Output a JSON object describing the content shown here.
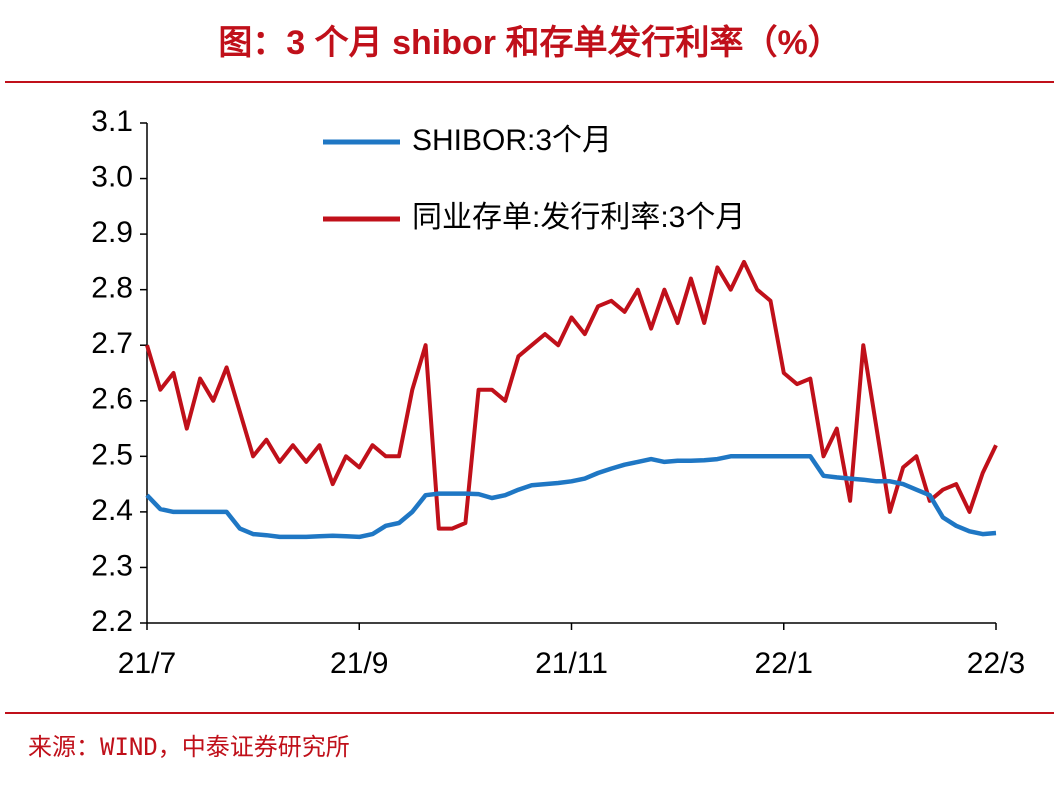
{
  "chart_data": {
    "type": "line",
    "title": "图：3 个月 shibor 和存单发行利率（%）",
    "source": "来源：WIND，中泰证券研究所",
    "categories": [
      "21/7",
      null,
      null,
      null,
      null,
      null,
      null,
      null,
      null,
      null,
      null,
      null,
      null,
      null,
      null,
      null,
      "21/9",
      null,
      null,
      null,
      null,
      null,
      null,
      null,
      null,
      null,
      null,
      null,
      null,
      null,
      null,
      null,
      "21/11",
      null,
      null,
      null,
      null,
      null,
      null,
      null,
      null,
      null,
      null,
      null,
      null,
      null,
      null,
      null,
      "22/1",
      null,
      null,
      null,
      null,
      null,
      null,
      null,
      null,
      null,
      null,
      null,
      null,
      null,
      null,
      null,
      "22/3"
    ],
    "series": [
      {
        "name": "SHIBOR:3个月",
        "color": "#1f77c4",
        "values": [
          2.43,
          2.405,
          2.4,
          2.4,
          2.4,
          2.4,
          2.4,
          2.37,
          2.36,
          2.358,
          2.355,
          2.355,
          2.355,
          2.356,
          2.357,
          2.356,
          2.355,
          2.36,
          2.375,
          2.38,
          2.4,
          2.43,
          2.433,
          2.433,
          2.433,
          2.432,
          2.425,
          2.43,
          2.44,
          2.448,
          2.45,
          2.452,
          2.455,
          2.46,
          2.47,
          2.478,
          2.485,
          2.49,
          2.495,
          2.49,
          2.492,
          2.492,
          2.493,
          2.495,
          2.5,
          2.5,
          2.5,
          2.5,
          2.5,
          2.5,
          2.5,
          2.465,
          2.462,
          2.46,
          2.458,
          2.455,
          2.455,
          2.45,
          2.44,
          2.43,
          2.39,
          2.375,
          2.365,
          2.36,
          2.362
        ]
      },
      {
        "name": "同业存单:发行利率:3个月",
        "color": "#c0101a",
        "values": [
          2.7,
          2.62,
          2.65,
          2.55,
          2.64,
          2.6,
          2.66,
          2.58,
          2.5,
          2.53,
          2.49,
          2.52,
          2.49,
          2.52,
          2.45,
          2.5,
          2.48,
          2.52,
          2.5,
          2.5,
          2.62,
          2.7,
          2.37,
          2.37,
          2.38,
          2.62,
          2.62,
          2.6,
          2.68,
          2.7,
          2.72,
          2.7,
          2.75,
          2.72,
          2.77,
          2.78,
          2.76,
          2.8,
          2.73,
          2.8,
          2.74,
          2.82,
          2.74,
          2.84,
          2.8,
          2.85,
          2.8,
          2.78,
          2.65,
          2.63,
          2.64,
          2.5,
          2.55,
          2.42,
          2.7,
          2.55,
          2.4,
          2.48,
          2.5,
          2.42,
          2.44,
          2.45,
          2.4,
          2.47,
          2.52
        ]
      }
    ],
    "ylim": [
      2.2,
      3.1
    ],
    "yticks": [
      2.2,
      2.3,
      2.4,
      2.5,
      2.6,
      2.7,
      2.8,
      2.9,
      {
        "value": 3,
        "label": "3.0"
      },
      3.1
    ]
  }
}
